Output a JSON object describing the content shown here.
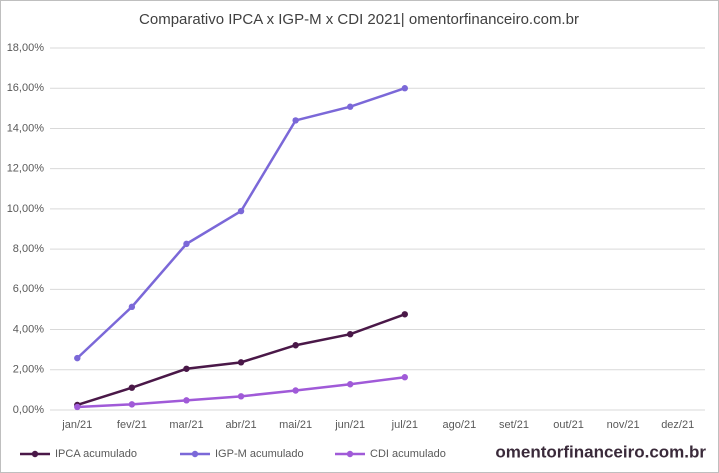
{
  "chart_data": {
    "type": "line",
    "title": "Comparativo IPCA x IGP-M x CDI 2021| omentorfinanceiro.com.br",
    "watermark": "omentorfinanceiro.com.br",
    "categories": [
      "jan/21",
      "fev/21",
      "mar/21",
      "abr/21",
      "mai/21",
      "jun/21",
      "jul/21",
      "ago/21",
      "set/21",
      "out/21",
      "nov/21",
      "dez/21"
    ],
    "series": [
      {
        "name": "IPCA acumulado",
        "color": "#4a1848",
        "values": [
          0.25,
          1.11,
          2.05,
          2.37,
          3.22,
          3.77,
          4.76,
          null,
          null,
          null,
          null,
          null
        ]
      },
      {
        "name": "IGP-M acumulado",
        "color": "#7b68d8",
        "values": [
          2.58,
          5.13,
          8.26,
          9.89,
          14.4,
          15.08,
          16.0,
          null,
          null,
          null,
          null,
          null
        ]
      },
      {
        "name": "CDI acumulado",
        "color": "#a05ad8",
        "values": [
          0.15,
          0.28,
          0.48,
          0.68,
          0.97,
          1.28,
          1.63,
          null,
          null,
          null,
          null,
          null
        ]
      }
    ],
    "ylim": [
      0,
      18
    ],
    "yticks": [
      {
        "value": 0,
        "label": "0,00%"
      },
      {
        "value": 2,
        "label": "2,00%"
      },
      {
        "value": 4,
        "label": "4,00%"
      },
      {
        "value": 6,
        "label": "6,00%"
      },
      {
        "value": 8,
        "label": "8,00%"
      },
      {
        "value": 10,
        "label": "10,00%"
      },
      {
        "value": 12,
        "label": "12,00%"
      },
      {
        "value": 14,
        "label": "14,00%"
      },
      {
        "value": 16,
        "label": "16,00%"
      },
      {
        "value": 18,
        "label": "18,00%"
      }
    ],
    "grid": true,
    "legend": "bottom-left"
  }
}
